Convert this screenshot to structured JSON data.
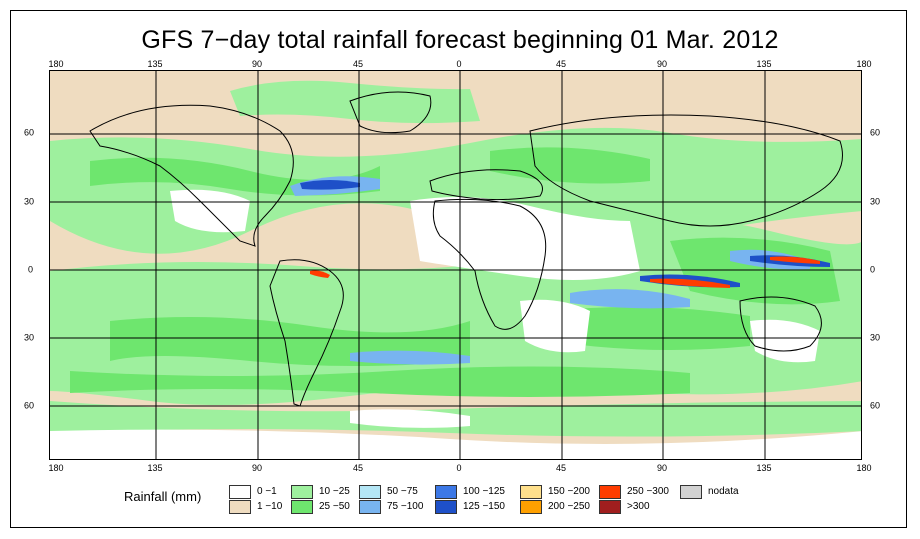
{
  "title": "GFS 7−day total rainfall forecast beginning 01 Mar. 2012",
  "axes": {
    "lon_labels": [
      "180",
      "135",
      "90",
      "45",
      "0",
      "45",
      "90",
      "135",
      "180"
    ],
    "lat_labels": [
      "60",
      "30",
      "0",
      "30",
      "60"
    ]
  },
  "legend": {
    "title": "Rainfall (mm)",
    "items": [
      {
        "label": "0 −1",
        "color": "#ffffff"
      },
      {
        "label": "1 −10",
        "color": "#efdcc0"
      },
      {
        "label": "10 −25",
        "color": "#9ef09e"
      },
      {
        "label": "25 −50",
        "color": "#6ee66e"
      },
      {
        "label": "50 −75",
        "color": "#b4e6f5"
      },
      {
        "label": "75 −100",
        "color": "#78b4f0"
      },
      {
        "label": "100 −125",
        "color": "#3c78e6"
      },
      {
        "label": "125 −150",
        "color": "#1e50c8"
      },
      {
        "label": "150 −200",
        "color": "#ffe08c"
      },
      {
        "label": "200 −250",
        "color": "#ffa000"
      },
      {
        "label": "250 −300",
        "color": "#ff3c00"
      },
      {
        "label": ">300",
        "color": "#a01e1e"
      },
      {
        "label": "nodata",
        "color": "#d2d2d2"
      }
    ]
  }
}
